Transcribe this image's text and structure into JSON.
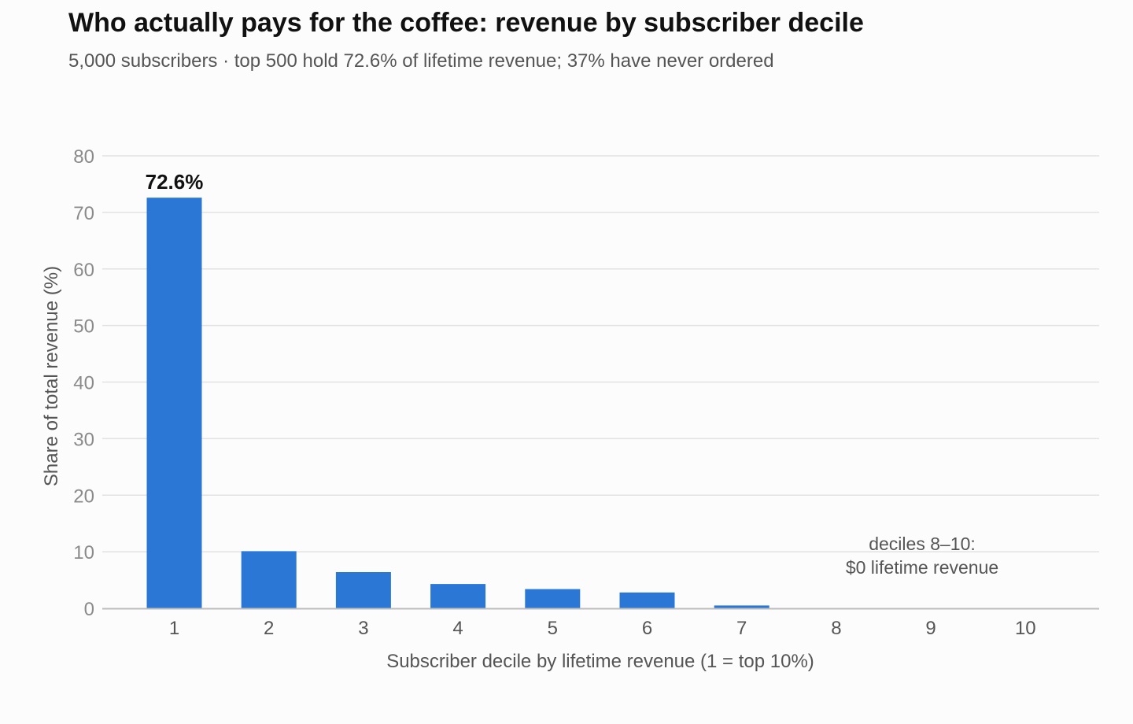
{
  "chart_data": {
    "type": "bar",
    "title": "Who actually pays for the coffee: revenue by subscriber decile",
    "subtitle": "5,000 subscribers · top 500 hold 72.6% of lifetime revenue; 37% have never ordered",
    "xlabel": "Subscriber decile by lifetime revenue (1 = top 10%)",
    "ylabel": "Share of total revenue (%)",
    "categories": [
      "1",
      "2",
      "3",
      "4",
      "5",
      "6",
      "7",
      "8",
      "9",
      "10"
    ],
    "values": [
      72.6,
      10.1,
      6.4,
      4.3,
      3.4,
      2.8,
      0.5,
      0,
      0,
      0
    ],
    "ylim": [
      0,
      80
    ],
    "yticks": [
      "0",
      "10",
      "20",
      "30",
      "40",
      "50",
      "60",
      "70",
      "80"
    ],
    "bar_data_label": "72.6%",
    "annotation": [
      "deciles 8–10:",
      "$0 lifetime revenue"
    ],
    "grid": true,
    "legend": "none",
    "colors": {
      "bar": "#2a77d6",
      "grid": "#e2e2e2",
      "axis": "#bdbdbd"
    }
  }
}
